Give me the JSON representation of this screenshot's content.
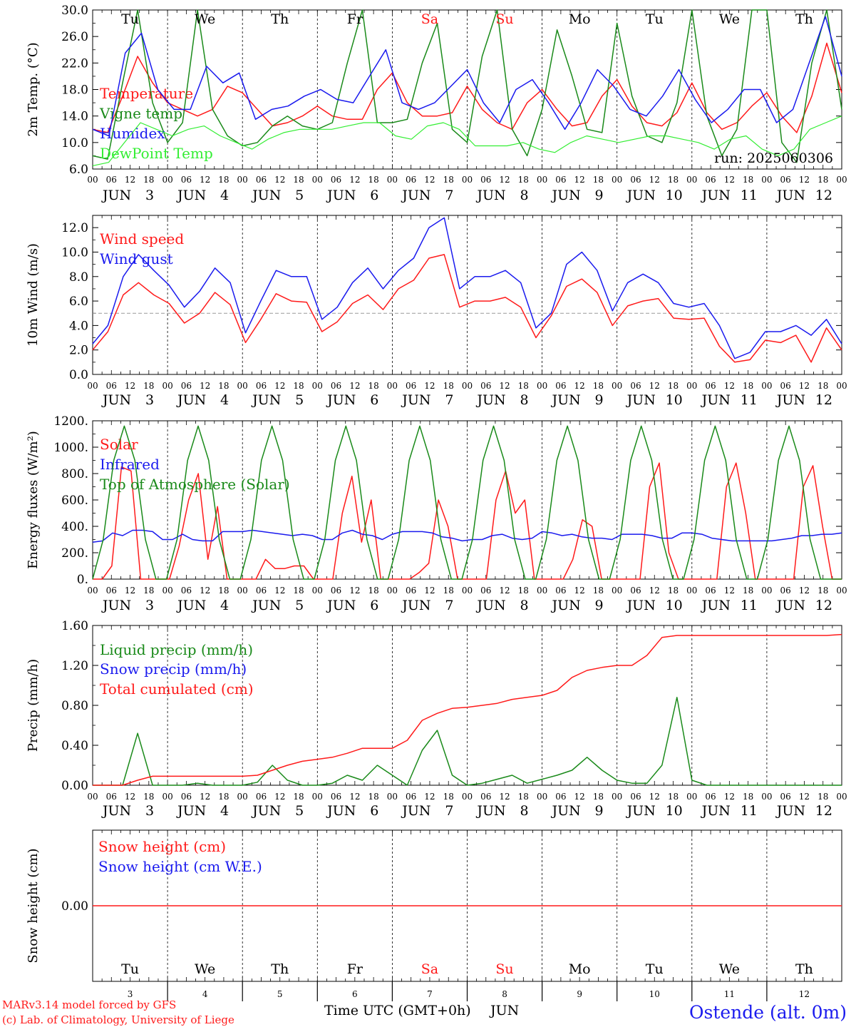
{
  "colors": {
    "red": "#ff1a1a",
    "green": "#1a8a1a",
    "blue": "#1a1aee",
    "lightgreen": "#33ee33",
    "ref": "#999999"
  },
  "days": {
    "names": [
      "Tu",
      "We",
      "Th",
      "Fr",
      "Sa",
      "Su",
      "Mo",
      "Tu",
      "We",
      "Th"
    ],
    "weekend": [
      false,
      false,
      false,
      false,
      true,
      true,
      false,
      false,
      false,
      false
    ],
    "dates": [
      "3",
      "4",
      "5",
      "6",
      "7",
      "8",
      "9",
      "10",
      "11",
      "12"
    ],
    "month": "JUN",
    "hour_ticks": [
      "00",
      "06",
      "12",
      "18"
    ],
    "final_tick": "00"
  },
  "run_label": "run: 2025060306",
  "footer": {
    "model": "MARv3.14 model forced by GFS",
    "credit": "(c) Lab. of Climatology, University of Liege",
    "xlabel": "Time UTC (GMT+0h)",
    "month": "JUN",
    "station": "Ostende (alt. 0m)"
  },
  "chart_data": [
    {
      "id": "temperature",
      "type": "line",
      "ylabel": "2m Temp. (°C)",
      "ylim": [
        6,
        30
      ],
      "yticks": [
        "6.0",
        "10.0",
        "14.0",
        "18.0",
        "22.0",
        "26.0",
        "30.0"
      ],
      "x_unit": "hours since Jun 3 00 UTC",
      "x_step_h": 6,
      "series": [
        {
          "name": "Temperature",
          "color": "red",
          "values": [
            12,
            11.5,
            17,
            23,
            19,
            16,
            15,
            14,
            15,
            18.5,
            17.5,
            15,
            12.5,
            13,
            14,
            15.5,
            14,
            13.5,
            13.5,
            18,
            20.5,
            16,
            14,
            14,
            14.5,
            18.5,
            15,
            13,
            12,
            16,
            18,
            15,
            12.5,
            13,
            17,
            19.5,
            15.5,
            13,
            12.5,
            14.5,
            19,
            14.5,
            12,
            13,
            15.5,
            17.5,
            14,
            11.5,
            17,
            25,
            17.5
          ]
        },
        {
          "name": "Vigne temp",
          "color": "green",
          "values": [
            8,
            7.5,
            19,
            30,
            16,
            10,
            13,
            30,
            15,
            11,
            9.5,
            10,
            12.5,
            14,
            12.5,
            12,
            13,
            22,
            30,
            13,
            13,
            13.5,
            22,
            28,
            12,
            10,
            23,
            30,
            12,
            8,
            15,
            27,
            20,
            12,
            11.5,
            28,
            17,
            11,
            10,
            16,
            30,
            14,
            8,
            12,
            30,
            30,
            10,
            7,
            22,
            30,
            15
          ]
        },
        {
          "name": "Humidex",
          "color": "blue",
          "values": [
            12,
            11,
            23.5,
            26.5,
            18,
            15,
            15,
            21.5,
            19,
            20.5,
            13.5,
            15,
            15.5,
            17,
            18,
            16.5,
            16,
            20,
            24,
            16,
            15,
            16,
            18.5,
            21,
            16,
            13,
            18,
            19.5,
            16,
            12,
            16,
            21,
            18.5,
            15,
            14,
            17,
            21,
            16.5,
            13,
            15,
            18,
            18,
            13,
            15,
            22,
            29,
            20
          ]
        },
        {
          "name": "DewPoint Temp",
          "color": "lightgreen",
          "values": [
            6.5,
            7,
            10,
            13,
            12,
            11,
            12,
            12.5,
            11,
            10,
            9,
            10.5,
            11.5,
            12,
            12,
            12,
            12.5,
            13,
            13,
            11,
            10.5,
            12.5,
            13,
            12,
            9.5,
            9.5,
            9.5,
            10,
            9,
            8.5,
            10,
            11,
            10.5,
            10,
            10.5,
            11,
            11,
            10.5,
            10,
            9,
            10.5,
            11,
            9,
            8,
            9,
            12,
            13,
            14
          ]
        }
      ]
    },
    {
      "id": "wind",
      "type": "line",
      "ylabel": "10m Wind (m/s)",
      "ylim": [
        0,
        13
      ],
      "yref": 5,
      "yticks": [
        "0.0",
        "2.0",
        "4.0",
        "6.0",
        "8.0",
        "10.0",
        "12.0"
      ],
      "x_unit": "hours since Jun 3 00 UTC",
      "x_step_h": 6,
      "series": [
        {
          "name": "Wind speed",
          "color": "red",
          "values": [
            2,
            3.5,
            6.5,
            7.5,
            6.5,
            5.8,
            4.2,
            5,
            6.7,
            5.7,
            2.6,
            4.5,
            6.6,
            6,
            5.9,
            3.5,
            4.3,
            5.8,
            6.5,
            5.3,
            7,
            7.7,
            9.5,
            9.8,
            5.5,
            6,
            6,
            6.3,
            5.5,
            3,
            4.8,
            7.2,
            7.8,
            6.7,
            4,
            5.6,
            6,
            6.2,
            4.6,
            4.5,
            4.6,
            2.3,
            1,
            1.2,
            2.8,
            2.6,
            3.2,
            1,
            3.8,
            2
          ]
        },
        {
          "name": "Wind gust",
          "color": "blue",
          "values": [
            2.5,
            4,
            8,
            9.8,
            8.5,
            7.3,
            5.5,
            6.8,
            8.7,
            7.5,
            3.4,
            6,
            8.5,
            8,
            8,
            4.5,
            5.5,
            7.5,
            8.7,
            7,
            8.5,
            9.5,
            12,
            12.8,
            7,
            8,
            8,
            8.5,
            7.5,
            3.8,
            5,
            9,
            10,
            8.5,
            5.2,
            7.5,
            8.2,
            7.5,
            5.8,
            5.5,
            5.8,
            4,
            1.3,
            1.8,
            3.5,
            3.5,
            4,
            3.2,
            4.5,
            2.5
          ]
        }
      ]
    },
    {
      "id": "energy",
      "type": "line",
      "ylabel": "Energy fluxes (W/m²)",
      "ylim": [
        0,
        1200
      ],
      "yticks": [
        "0.",
        "200.",
        "400.",
        "600.",
        "800.",
        "1000.",
        "1200."
      ],
      "x_unit": "hours since Jun 3 00 UTC",
      "x_step_h": 3,
      "series": [
        {
          "name": "Solar",
          "color": "red",
          "values": [
            0,
            0,
            100,
            850,
            820,
            0,
            0,
            0,
            0,
            250,
            600,
            800,
            150,
            550,
            0,
            0,
            0,
            0,
            150,
            80,
            80,
            100,
            100,
            0,
            0,
            0,
            500,
            780,
            280,
            600,
            0,
            0,
            0,
            0,
            50,
            120,
            600,
            400,
            0,
            0,
            0,
            0,
            600,
            820,
            500,
            600,
            0,
            0,
            0,
            0,
            150,
            450,
            400,
            0,
            0,
            0,
            0,
            0,
            700,
            880,
            200,
            0,
            0,
            0,
            0,
            0,
            700,
            880,
            500,
            0,
            0,
            0,
            0,
            0,
            700,
            860,
            400,
            0,
            0
          ]
        },
        {
          "name": "Infrared",
          "color": "blue",
          "values": [
            280,
            290,
            350,
            330,
            370,
            370,
            360,
            300,
            300,
            340,
            300,
            290,
            290,
            360,
            360,
            360,
            370,
            360,
            350,
            340,
            330,
            340,
            330,
            300,
            300,
            350,
            370,
            340,
            330,
            300,
            340,
            360,
            360,
            360,
            350,
            320,
            310,
            290,
            300,
            300,
            330,
            340,
            310,
            300,
            310,
            360,
            350,
            330,
            340,
            320,
            310,
            310,
            300,
            340,
            340,
            340,
            330,
            310,
            310,
            350,
            350,
            340,
            310,
            300,
            290,
            290,
            290,
            290,
            290,
            300,
            310,
            330,
            330,
            340,
            340,
            350
          ]
        },
        {
          "name": "Top of Atmosphere (Solar)",
          "color": "green",
          "values": [
            0,
            300,
            900,
            1160,
            900,
            300,
            0,
            0,
            300,
            900,
            1160,
            900,
            300,
            0,
            0,
            300,
            900,
            1160,
            900,
            300,
            0,
            0,
            300,
            900,
            1160,
            900,
            300,
            0,
            0,
            300,
            900,
            1160,
            900,
            300,
            0,
            0,
            300,
            900,
            1160,
            900,
            300,
            0,
            0,
            300,
            900,
            1160,
            900,
            300,
            0,
            0,
            300,
            900,
            1160,
            900,
            300,
            0,
            0,
            300,
            900,
            1160,
            900,
            300,
            0,
            0,
            300,
            900,
            1160,
            900,
            300,
            0,
            0,
            0
          ]
        }
      ]
    },
    {
      "id": "precip",
      "type": "line",
      "ylabel": "Precip (mm/h)",
      "ylim": [
        0,
        1.6
      ],
      "yticks": [
        "0.00",
        "0.40",
        "0.80",
        "1.20",
        "1.60"
      ],
      "x_unit": "hours since Jun 3 00 UTC",
      "x_step_h": 6,
      "series": [
        {
          "name": "Liquid precip (mm/h)",
          "color": "green",
          "values": [
            0,
            0,
            0,
            0.52,
            0,
            0,
            0,
            0.02,
            0,
            0,
            0,
            0.03,
            0.2,
            0.05,
            0,
            0,
            0.02,
            0.1,
            0.05,
            0.2,
            0.1,
            0,
            0.35,
            0.55,
            0.1,
            0,
            0.02,
            0.06,
            0.1,
            0.02,
            0.06,
            0.1,
            0.15,
            0.28,
            0.15,
            0.05,
            0.02,
            0.02,
            0.2,
            0.88,
            0.05,
            0,
            0,
            0,
            0,
            0,
            0,
            0,
            0,
            0,
            0
          ]
        },
        {
          "name": "Snow precip (mm/h)",
          "color": "blue",
          "values": []
        },
        {
          "name": "Total cumulated (cm)",
          "color": "red",
          "values": [
            0,
            0,
            0,
            0.05,
            0.09,
            0.09,
            0.09,
            0.09,
            0.09,
            0.09,
            0.09,
            0.1,
            0.15,
            0.2,
            0.24,
            0.26,
            0.28,
            0.32,
            0.37,
            0.37,
            0.37,
            0.45,
            0.65,
            0.72,
            0.77,
            0.78,
            0.8,
            0.82,
            0.86,
            0.88,
            0.9,
            0.95,
            1.08,
            1.15,
            1.18,
            1.2,
            1.2,
            1.3,
            1.48,
            1.5,
            1.5,
            1.5,
            1.5,
            1.5,
            1.5,
            1.5,
            1.5,
            1.5,
            1.5,
            1.5,
            1.51
          ]
        }
      ]
    },
    {
      "id": "snow",
      "type": "line",
      "ylabel": "Snow height (cm)",
      "ylim": [
        -1,
        1
      ],
      "yticks": [
        "0.00"
      ],
      "x_unit": "hours since Jun 3 00 UTC",
      "x_step_h": 6,
      "series": [
        {
          "name": "Snow height (cm)",
          "color": "red",
          "values": [
            0,
            0
          ]
        },
        {
          "name": "Snow height (cm W.E.)",
          "color": "blue",
          "values": []
        }
      ]
    }
  ]
}
